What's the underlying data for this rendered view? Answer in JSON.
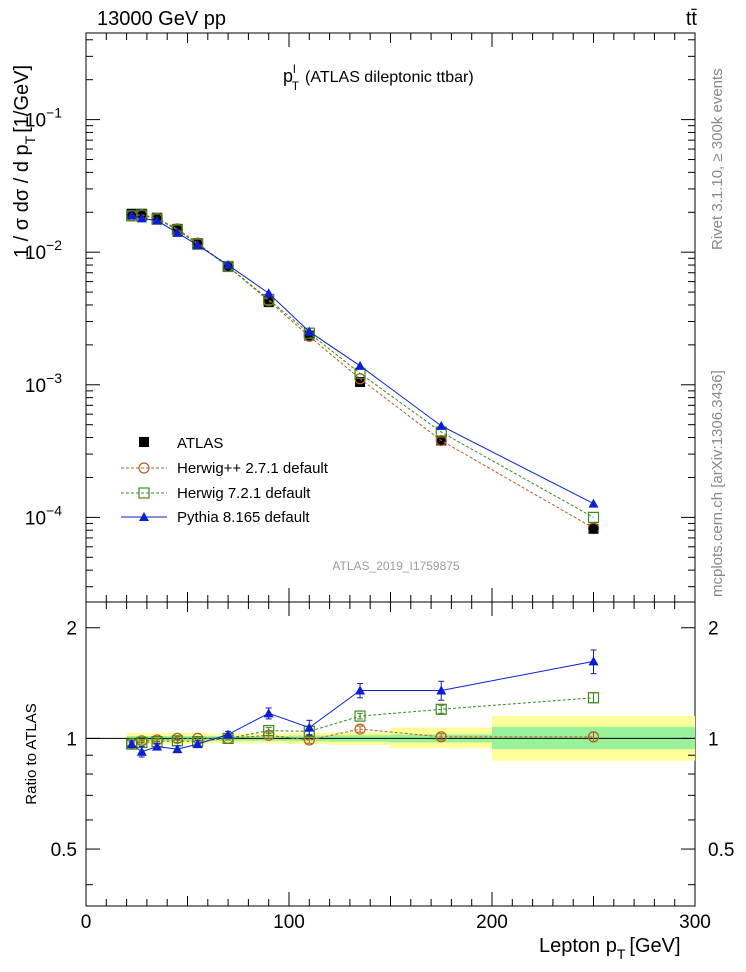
{
  "header": {
    "energy_label": "13000 GeV pp",
    "process_label": "tt̄"
  },
  "side_labels": {
    "rivet": "Rivet 3.1.10, ≥ 300k events",
    "source": "mcplots.cern.ch [arXiv:1306.3436]"
  },
  "chart_data": [
    {
      "panel": "main",
      "type": "line",
      "title_main": "p",
      "title_sup": "l",
      "title_sub": "T",
      "title_rest": "(ATLAS dileptonic ttbar)",
      "ylabel": "1 / σ  dσ / d p",
      "ylabel_sub": "T",
      "ylabel_unit": "[1/GeV]",
      "yscale": "log",
      "ylim": [
        2.3e-05,
        0.45
      ],
      "xlim": [
        0,
        300
      ],
      "ytick_values": [
        0.0001,
        0.001,
        0.01,
        0.1
      ],
      "ytick_labels": [
        {
          "base": "10",
          "exp": "−4"
        },
        {
          "base": "10",
          "exp": "−3"
        },
        {
          "base": "10",
          "exp": "−2"
        },
        {
          "base": "10",
          "exp": "−1"
        }
      ],
      "watermark": "ATLAS_2019_I1759875",
      "legend_position": "lower-left",
      "data": {
        "name": "ATLAS",
        "x": [
          22.5,
          27.5,
          35,
          45,
          55,
          70,
          90,
          110,
          135,
          175,
          250
        ],
        "y": [
          0.0195,
          0.0195,
          0.0182,
          0.015,
          0.0117,
          0.0078,
          0.0042,
          0.00235,
          0.00105,
          0.00038,
          8.2e-05
        ],
        "color": "#000000"
      },
      "series": [
        {
          "name": "Herwig++ 2.7.1 default",
          "marker": "open-circle",
          "dashed": true,
          "color": "#b85c1e",
          "x": [
            22.5,
            27.5,
            35,
            45,
            55,
            70,
            90,
            110,
            135,
            175,
            250
          ],
          "y": [
            0.0189,
            0.0192,
            0.018,
            0.015,
            0.0117,
            0.0078,
            0.0043,
            0.00232,
            0.00111,
            0.00038,
            8.3e-05
          ]
        },
        {
          "name": "Herwig 7.2.1 default",
          "marker": "open-square",
          "dashed": true,
          "color": "#3d8a1e",
          "x": [
            22.5,
            27.5,
            35,
            45,
            55,
            70,
            90,
            110,
            135,
            175,
            250
          ],
          "y": [
            0.0188,
            0.019,
            0.0178,
            0.0147,
            0.0115,
            0.0078,
            0.0044,
            0.00245,
            0.00122,
            0.00044,
            0.0001
          ]
        },
        {
          "name": "Pythia 8.165 default",
          "marker": "filled-triangle",
          "dashed": false,
          "color": "#0a1fd1",
          "x": [
            22.5,
            27.5,
            35,
            45,
            55,
            70,
            90,
            110,
            135,
            175,
            250
          ],
          "y": [
            0.0189,
            0.018,
            0.0173,
            0.014,
            0.0113,
            0.008,
            0.0049,
            0.00252,
            0.00139,
            0.00049,
            0.000127
          ]
        }
      ]
    },
    {
      "panel": "ratio",
      "type": "line",
      "ylabel": "Ratio to ATLAS",
      "yscale": "log",
      "ylim": [
        0.35,
        2.35
      ],
      "ytick_labels": [
        "0.5",
        "1",
        "2"
      ],
      "ytick_values": [
        0.5,
        1,
        2
      ],
      "xlabel": "Lepton p",
      "xlabel_sub": "T",
      "xlabel_unit": "[GeV]",
      "xticks": [
        0,
        100,
        200,
        300
      ],
      "xtick_labels": [
        "0",
        "100",
        "200",
        "300"
      ],
      "uncertainty_bands": [
        {
          "x0": 20,
          "x1": 25,
          "stat": [
            0.985,
            1.015
          ],
          "total": [
            0.965,
            1.035
          ]
        },
        {
          "x0": 25,
          "x1": 30,
          "stat": [
            0.985,
            1.015
          ],
          "total": [
            0.965,
            1.035
          ]
        },
        {
          "x0": 30,
          "x1": 40,
          "stat": [
            0.985,
            1.015
          ],
          "total": [
            0.965,
            1.035
          ]
        },
        {
          "x0": 40,
          "x1": 50,
          "stat": [
            0.985,
            1.015
          ],
          "total": [
            0.965,
            1.035
          ]
        },
        {
          "x0": 50,
          "x1": 60,
          "stat": [
            0.985,
            1.015
          ],
          "total": [
            0.965,
            1.035
          ]
        },
        {
          "x0": 60,
          "x1": 80,
          "stat": [
            0.985,
            1.015
          ],
          "total": [
            0.97,
            1.03
          ]
        },
        {
          "x0": 80,
          "x1": 100,
          "stat": [
            0.985,
            1.015
          ],
          "total": [
            0.97,
            1.03
          ]
        },
        {
          "x0": 100,
          "x1": 120,
          "stat": [
            0.982,
            1.018
          ],
          "total": [
            0.965,
            1.035
          ]
        },
        {
          "x0": 120,
          "x1": 150,
          "stat": [
            0.98,
            1.02
          ],
          "total": [
            0.96,
            1.04
          ]
        },
        {
          "x0": 150,
          "x1": 200,
          "stat": [
            0.975,
            1.025
          ],
          "total": [
            0.94,
            1.07
          ]
        },
        {
          "x0": 200,
          "x1": 300,
          "stat": [
            0.935,
            1.075
          ],
          "total": [
            0.87,
            1.15
          ]
        }
      ],
      "series": [
        {
          "name": "Herwig++ 2.7.1 default",
          "color": "#b85c1e",
          "marker": "open-circle",
          "dashed": true,
          "x": [
            22.5,
            27.5,
            35,
            45,
            55,
            70,
            90,
            110,
            135,
            175,
            250
          ],
          "y": [
            0.97,
            0.985,
            0.99,
            1.0,
            1.0,
            1.0,
            1.02,
            0.99,
            1.06,
            1.01,
            1.01
          ],
          "err": [
            0.01,
            0.01,
            0.01,
            0.01,
            0.01,
            0.01,
            0.02,
            0.02,
            0.02,
            0.02,
            0.03
          ]
        },
        {
          "name": "Herwig 7.2.1 default",
          "color": "#3d8a1e",
          "marker": "open-square",
          "dashed": true,
          "x": [
            22.5,
            27.5,
            35,
            45,
            55,
            70,
            90,
            110,
            135,
            175,
            250
          ],
          "y": [
            0.965,
            0.975,
            0.98,
            0.985,
            0.98,
            1.0,
            1.05,
            1.045,
            1.15,
            1.2,
            1.29
          ],
          "err": [
            0.01,
            0.01,
            0.01,
            0.01,
            0.01,
            0.01,
            0.02,
            0.02,
            0.02,
            0.03,
            0.04
          ]
        },
        {
          "name": "Pythia 8.165 default",
          "color": "#0a1fd1",
          "marker": "filled-triangle",
          "dashed": false,
          "x": [
            22.5,
            27.5,
            35,
            45,
            55,
            70,
            90,
            110,
            135,
            175,
            250
          ],
          "y": [
            0.965,
            0.92,
            0.95,
            0.935,
            0.965,
            1.025,
            1.17,
            1.07,
            1.35,
            1.35,
            1.62
          ],
          "err": [
            0.02,
            0.03,
            0.02,
            0.02,
            0.02,
            0.02,
            0.04,
            0.05,
            0.06,
            0.08,
            0.12
          ]
        }
      ]
    }
  ]
}
